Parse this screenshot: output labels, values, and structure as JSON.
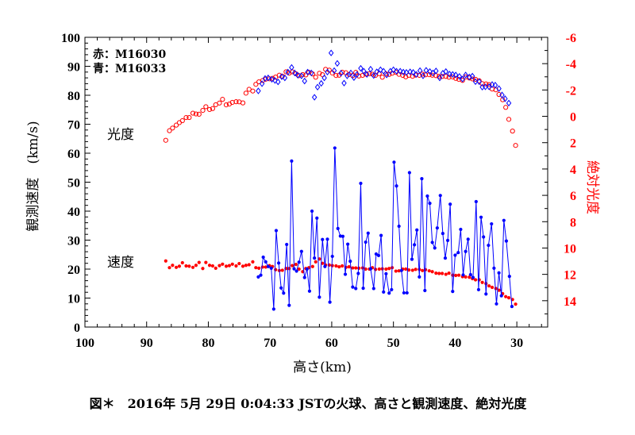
{
  "chart_data": {
    "type": "scatter",
    "caption": "図＊　2016年 5月 29日 0:04:33 JSTの火球、高さと観測速度、絶対光度",
    "xlabel": "高さ(km)",
    "ylabel_left": "観測速度　(km/s)",
    "ylabel_right": "絶対光度",
    "xlim": [
      100,
      25
    ],
    "ylim_left": [
      0,
      100
    ],
    "ylim_right": [
      16,
      -6
    ],
    "x_ticks": [
      "100",
      "90",
      "80",
      "70",
      "60",
      "50",
      "40",
      "30"
    ],
    "y_left_ticks": [
      "0",
      "10",
      "20",
      "30",
      "40",
      "50",
      "60",
      "70",
      "80",
      "90",
      "100"
    ],
    "y_right_ticks": [
      "-6",
      "-4",
      "-2",
      "0",
      "2",
      "4",
      "6",
      "8",
      "10",
      "12",
      "14"
    ],
    "legend": {
      "red": "赤：M16030",
      "blue": "青：M16033"
    },
    "annotations": {
      "magnitude": "光度",
      "velocity": "速度"
    },
    "colors": {
      "red": "#ff0000",
      "blue": "#0000ff",
      "axis": "#000000"
    },
    "series": [
      {
        "name": "red magnitude (M16030)",
        "axis": "right",
        "marker": "open-circle",
        "color": "#ff0000",
        "x": [
          86.9,
          86.3,
          85.8,
          85.2,
          84.7,
          84.2,
          83.6,
          83.1,
          82.5,
          82.0,
          81.5,
          80.9,
          80.4,
          79.8,
          79.3,
          78.8,
          78.2,
          77.7,
          77.1,
          76.6,
          76.1,
          75.5,
          75.0,
          74.4,
          73.9,
          73.4,
          72.8,
          72.3,
          71.8,
          71.2,
          70.7,
          70.1,
          69.6,
          69.1,
          68.5,
          68.0,
          67.4,
          66.9,
          66.4,
          65.8,
          65.3,
          64.7,
          64.2,
          63.7,
          63.1,
          62.6,
          62.0,
          61.5,
          61.0,
          60.4,
          59.9,
          59.3,
          58.8,
          58.3,
          57.7,
          57.2,
          56.6,
          56.1,
          55.6,
          55.0,
          54.5,
          53.9,
          53.4,
          52.9,
          52.3,
          51.8,
          51.2,
          50.7,
          50.2,
          49.6,
          49.1,
          48.5,
          48.0,
          47.5,
          46.9,
          46.4,
          45.8,
          45.3,
          44.8,
          44.2,
          43.7,
          43.1,
          42.6,
          42.1,
          41.5,
          41.0,
          40.4,
          39.9,
          39.4,
          38.8,
          38.3,
          37.7,
          37.2,
          36.7,
          36.1,
          35.6,
          35.0,
          34.5,
          34.0,
          33.4,
          32.9,
          32.3,
          31.8,
          31.3,
          30.7,
          30.2
        ],
        "y": [
          1.82,
          1.09,
          0.89,
          0.67,
          0.48,
          0.33,
          0.09,
          0.09,
          -0.24,
          -0.18,
          -0.16,
          -0.45,
          -0.73,
          -0.52,
          -0.59,
          -0.88,
          -1.01,
          -1.29,
          -0.87,
          -0.93,
          -1.06,
          -1.11,
          -1.1,
          -1.02,
          -1.76,
          -2.05,
          -1.92,
          -2.43,
          -2.62,
          -2.72,
          -2.82,
          -2.85,
          -2.88,
          -2.98,
          -3.12,
          -3.05,
          -3.38,
          -3.28,
          -3.38,
          -3.23,
          -3.09,
          -3.17,
          -3.14,
          -3.34,
          -3.22,
          -2.97,
          -3.27,
          -3.16,
          -3.57,
          -3.51,
          -3.29,
          -3.1,
          -3.12,
          -3.35,
          -3.31,
          -3.17,
          -3.09,
          -3.34,
          -3.06,
          -3.11,
          -3.21,
          -3.23,
          -3.2,
          -3.11,
          -3.24,
          -2.97,
          -3.23,
          -3.18,
          -3.27,
          -3.34,
          -3.19,
          -3.11,
          -3.0,
          -3.11,
          -3.04,
          -3.13,
          -3.11,
          -3.21,
          -3.15,
          -3.16,
          -3.12,
          -3.09,
          -3.03,
          -3.03,
          -3.03,
          -2.97,
          -2.99,
          -2.88,
          -2.81,
          -2.73,
          -2.99,
          -2.91,
          -2.84,
          -2.81,
          -2.7,
          -2.48,
          -2.46,
          -2.41,
          -2.07,
          -2.01,
          -1.66,
          -1.26,
          -0.68,
          0.23,
          1.12,
          2.21
        ]
      },
      {
        "name": "blue velocity (M16033) open",
        "axis": "left",
        "marker": "open-diamond",
        "color": "#0000ff",
        "x": [
          71.9,
          71.3,
          70.8,
          70.3,
          69.7,
          69.2,
          68.7,
          68.1,
          67.6,
          67.1,
          66.5,
          66.0,
          65.5,
          64.9,
          64.4,
          63.9,
          63.3,
          62.8,
          62.3,
          61.7,
          61.2,
          60.7,
          60.1,
          59.6,
          59.1,
          58.5,
          58.0,
          57.5,
          56.9,
          56.4,
          55.9,
          55.3,
          54.8,
          54.3,
          53.7,
          53.2,
          52.7,
          52.1,
          51.6,
          51.1,
          50.5,
          50.0,
          49.5,
          48.9,
          48.4,
          47.9,
          47.3,
          46.8,
          46.3,
          45.7,
          45.2,
          44.7,
          44.1,
          43.6,
          43.1,
          42.5,
          42.0,
          41.5,
          40.9,
          40.4,
          39.9,
          39.3,
          38.8,
          38.3,
          37.7,
          37.2,
          36.7,
          36.1,
          35.6,
          35.1,
          34.5,
          34.0,
          33.5,
          32.9,
          32.4,
          31.9,
          31.3
        ],
        "y": [
          81.5,
          84.0,
          85.8,
          86.0,
          85.5,
          85.1,
          84.6,
          86.4,
          86.0,
          88.0,
          89.6,
          87.7,
          86.9,
          86.7,
          84.9,
          88.0,
          87.7,
          79.3,
          82.8,
          84.1,
          86.0,
          88.0,
          94.6,
          88.5,
          91.0,
          87.6,
          84.2,
          86.7,
          87.7,
          86.1,
          87.2,
          89.3,
          88.3,
          87.2,
          89.0,
          86.8,
          88.1,
          88.8,
          88.3,
          87.0,
          88.3,
          88.8,
          88.3,
          88.3,
          88.0,
          87.9,
          88.1,
          87.9,
          87.2,
          88.5,
          86.7,
          88.6,
          88.2,
          87.7,
          88.4,
          86.0,
          87.6,
          88.2,
          87.3,
          87.2,
          87.0,
          86.5,
          85.6,
          87.0,
          86.3,
          86.6,
          84.7,
          84.7,
          82.8,
          82.9,
          82.9,
          83.7,
          83.5,
          82.3,
          80.1,
          78.8,
          77.3
        ]
      },
      {
        "name": "red velocity (M16030)",
        "axis": "left",
        "marker": "filled-dot",
        "color": "#ff0000",
        "x": [
          86.9,
          86.3,
          85.8,
          85.2,
          84.7,
          84.2,
          83.6,
          83.1,
          82.5,
          82.0,
          81.5,
          80.9,
          80.4,
          79.8,
          79.3,
          78.8,
          78.2,
          77.7,
          77.1,
          76.6,
          76.1,
          75.5,
          75.0,
          74.4,
          73.9,
          73.4,
          72.8,
          72.3,
          71.8,
          71.2,
          70.7,
          70.1,
          69.6,
          69.1,
          68.5,
          68.0,
          67.4,
          66.9,
          66.4,
          65.8,
          65.3,
          64.7,
          64.2,
          63.7,
          63.1,
          62.6,
          62.0,
          61.5,
          61.0,
          60.4,
          59.9,
          59.3,
          58.8,
          58.3,
          57.7,
          57.2,
          56.6,
          56.1,
          55.6,
          55.0,
          54.5,
          53.9,
          53.4,
          52.9,
          52.3,
          51.8,
          51.2,
          50.7,
          50.2,
          49.6,
          49.1,
          48.5,
          48.0,
          47.5,
          46.9,
          46.4,
          45.8,
          45.3,
          44.8,
          44.2,
          43.7,
          43.1,
          42.6,
          42.1,
          41.5,
          41.0,
          40.4,
          39.9,
          39.4,
          38.8,
          38.3,
          37.7,
          37.2,
          36.7,
          36.1,
          35.6,
          35.0,
          34.5,
          34.0,
          33.4,
          32.9,
          32.3,
          31.8,
          31.3,
          30.7,
          30.2
        ],
        "y": [
          22.8,
          20.5,
          21.3,
          20.6,
          21.0,
          22.2,
          21.1,
          21.0,
          20.6,
          21.3,
          22.3,
          20.2,
          22.3,
          21.3,
          21.1,
          20.3,
          21.2,
          21.7,
          21.0,
          21.2,
          21.7,
          21.1,
          21.9,
          21.0,
          21.3,
          21.5,
          22.5,
          20.5,
          20.3,
          20.7,
          20.7,
          21.2,
          20.9,
          19.8,
          19.5,
          19.6,
          20.2,
          20.2,
          21.2,
          21.6,
          20.0,
          19.1,
          20.2,
          20.5,
          20.9,
          22.5,
          23.5,
          22.0,
          21.4,
          21.4,
          21.2,
          21.1,
          20.8,
          21.1,
          20.6,
          20.8,
          20.4,
          20.4,
          20.3,
          20.4,
          20.0,
          20.0,
          20.5,
          19.9,
          20.0,
          20.1,
          20.0,
          20.2,
          20.5,
          19.3,
          19.4,
          20.0,
          20.0,
          19.7,
          19.6,
          19.9,
          19.9,
          19.5,
          19.8,
          19.4,
          19.1,
          18.6,
          18.5,
          18.5,
          18.2,
          18.6,
          17.9,
          17.8,
          17.9,
          17.4,
          17.3,
          17.2,
          16.7,
          16.3,
          16.3,
          15.4,
          15.0,
          14.2,
          13.7,
          13.3,
          12.7,
          11.5,
          10.5,
          10.1,
          9.5,
          7.9
        ]
      },
      {
        "name": "blue velocity (M16033) connected",
        "axis": "left",
        "marker": "filled-dot-line",
        "color": "#0000ff",
        "x": [
          71.9,
          71.5,
          71.1,
          70.7,
          70.3,
          69.8,
          69.4,
          69.0,
          68.6,
          68.2,
          67.8,
          67.3,
          66.9,
          66.5,
          66.1,
          65.7,
          65.3,
          64.9,
          64.4,
          64.0,
          63.6,
          63.2,
          62.8,
          62.4,
          62.0,
          61.5,
          61.1,
          60.7,
          60.3,
          59.9,
          59.5,
          59.0,
          58.6,
          58.2,
          57.8,
          57.4,
          57.0,
          56.6,
          56.1,
          55.7,
          55.3,
          54.9,
          54.5,
          54.1,
          53.7,
          53.2,
          52.8,
          52.4,
          52.0,
          51.6,
          51.2,
          50.7,
          50.3,
          49.9,
          49.5,
          49.1,
          48.7,
          48.3,
          47.8,
          47.4,
          47.0,
          46.6,
          46.2,
          45.8,
          45.4,
          44.9,
          44.5,
          44.1,
          43.7,
          43.3,
          42.9,
          42.4,
          42.0,
          41.6,
          41.2,
          40.8,
          40.4,
          40.0,
          39.5,
          39.1,
          38.7,
          38.3,
          37.9,
          37.5,
          37.1,
          36.6,
          36.2,
          35.8,
          35.4,
          35.0,
          34.6,
          34.1,
          33.7,
          33.3,
          32.9,
          32.5,
          32.1,
          31.7,
          31.2,
          30.8
        ],
        "y": [
          17.3,
          17.9,
          24.1,
          22.5,
          20.9,
          20.3,
          6.2,
          33.3,
          22.1,
          13.5,
          11.7,
          28.5,
          7.5,
          57.3,
          20.1,
          19.3,
          22.4,
          26.1,
          17.1,
          20.0,
          12.4,
          40.0,
          23.8,
          37.6,
          10.3,
          30.2,
          20.9,
          30.3,
          8.6,
          24.4,
          61.8,
          34.0,
          31.4,
          31.3,
          18.2,
          28.6,
          22.7,
          13.8,
          13.3,
          18.5,
          49.6,
          13.4,
          29.3,
          32.4,
          20.1,
          13.3,
          25.2,
          24.7,
          31.6,
          12.1,
          18.4,
          11.7,
          12.9,
          56.9,
          48.7,
          34.8,
          19.5,
          11.8,
          11.8,
          53.3,
          23.4,
          28.4,
          33.5,
          17.3,
          51.2,
          12.6,
          45.2,
          42.7,
          29.2,
          27.3,
          34.2,
          45.4,
          32.3,
          23.8,
          29.9,
          42.4,
          12.3,
          24.8,
          25.7,
          33.7,
          18.0,
          26.1,
          30.3,
          18.1,
          17.1,
          43.3,
          12.9,
          37.9,
          31.1,
          11.4,
          28.2,
          35.6,
          20.3,
          8.0,
          18.7,
          10.8,
          36.8,
          29.7,
          17.5,
          7.1
        ]
      }
    ]
  }
}
